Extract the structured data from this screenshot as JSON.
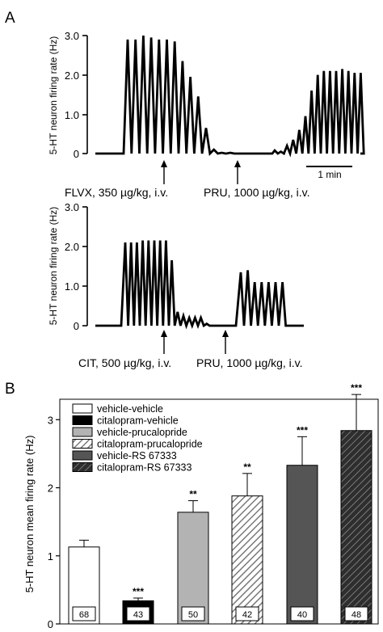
{
  "panel_a": {
    "label": "A",
    "ylabel": "5-HT neuron firing rate (Hz)",
    "ticks": [
      "3.0",
      "2.0",
      "1.0",
      "0"
    ],
    "top": {
      "annotations": [
        "FLVX, 350 µg/kg, i.v.",
        "PRU, 1000 µg/kg, i.v."
      ],
      "scale_bar_label": "1 min"
    },
    "bottom": {
      "annotations": [
        "CIT, 500 µg/kg, i.v.",
        "PRU, 1000 µg/kg, i.v."
      ]
    }
  },
  "panel_b": {
    "label": "B"
  },
  "chart_data": [
    {
      "type": "line",
      "ylabel": "5-HT neuron firing rate (Hz)",
      "ylim": [
        0,
        3.0
      ],
      "yticks": [
        0,
        1.0,
        2.0,
        3.0
      ],
      "scale_bar": "1 min",
      "annotations": [
        "FLVX, 350 µg/kg, i.v.",
        "PRU, 1000 µg/kg, i.v."
      ],
      "series": [
        {
          "description": "firing-rate trace (burst peaks)",
          "peaks": [
            2.9,
            2.9,
            3.0,
            2.95,
            2.9,
            2.9,
            2.85,
            2.35,
            1.95,
            1.45,
            0.65,
            0.1,
            0.02,
            0.02,
            0.08,
            0.05,
            0.2,
            0.35,
            0.6,
            0.95,
            1.6,
            2.0,
            2.1,
            2.1,
            2.1,
            2.15,
            2.1,
            2.05,
            2.05
          ]
        }
      ]
    },
    {
      "type": "line",
      "ylabel": "5-HT neuron firing rate (Hz)",
      "ylim": [
        0,
        3.0
      ],
      "yticks": [
        0,
        1.0,
        2.0,
        3.0
      ],
      "annotations": [
        "CIT, 500 µg/kg, i.v.",
        "PRU, 1000 µg/kg, i.v."
      ],
      "series": [
        {
          "description": "firing-rate trace (burst peaks)",
          "peaks": [
            2.1,
            2.1,
            2.1,
            2.15,
            2.15,
            2.15,
            2.15,
            2.15,
            1.65,
            0.35,
            0.25,
            0.2,
            0.2,
            0.2,
            0.05,
            1.35,
            1.4,
            1.1,
            1.1,
            1.1,
            1.1,
            1.1
          ]
        }
      ]
    },
    {
      "type": "bar",
      "ylabel": "5-HT neuron mean firing rate (Hz)",
      "ylim": [
        0,
        3.3
      ],
      "yticks": [
        0,
        1,
        2,
        3
      ],
      "categories": [
        "vehicle-vehicle",
        "citalopram-vehicle",
        "vehicle-prucalopride",
        "citalopram-prucalopride",
        "vehicle-RS 67333",
        "citalopram-RS 67333"
      ],
      "legend": [
        "vehicle-vehicle",
        "citalopram-vehicle",
        "vehicle-prucalopride",
        "citalopram-prucalopride",
        "vehicle-RS 67333",
        "citalopram-RS 67333"
      ],
      "legend_position": "top-left",
      "values": [
        1.13,
        0.34,
        1.64,
        1.88,
        2.33,
        2.84
      ],
      "errors": [
        0.1,
        0.04,
        0.17,
        0.33,
        0.42,
        0.53
      ],
      "n": [
        "68",
        "43",
        "50",
        "42",
        "40",
        "48"
      ],
      "significance": [
        "",
        "***",
        "**",
        "**",
        "***",
        "***"
      ],
      "colors": [
        "#ffffff",
        "#000000",
        "#b3b3b3",
        "hatch-light",
        "#555555",
        "hatch-dark"
      ]
    }
  ]
}
